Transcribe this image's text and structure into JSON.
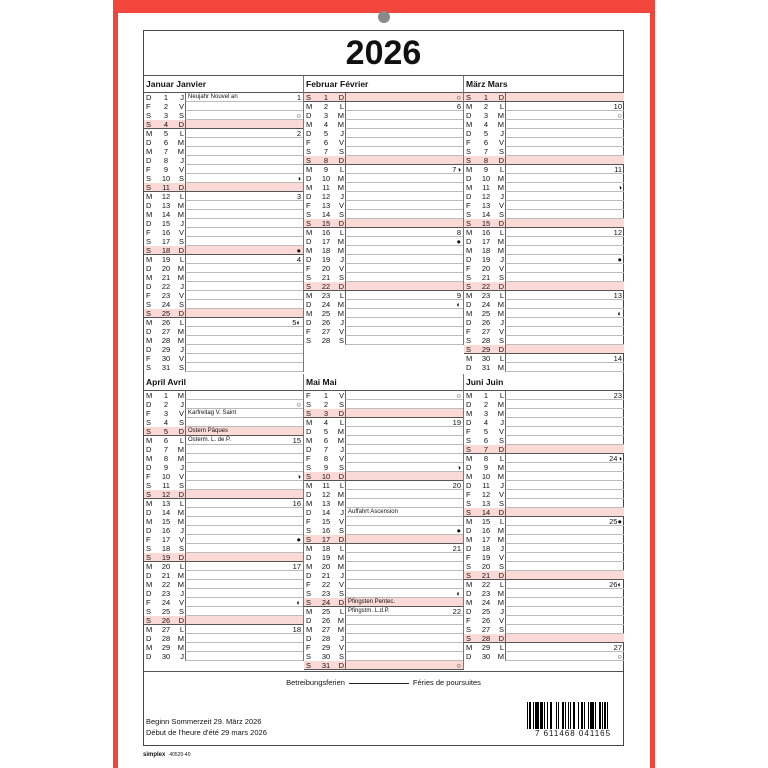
{
  "title": "2026",
  "colors": {
    "frame": "#f2463c",
    "sunday": "#fbd9d7"
  },
  "months": [
    {
      "name": "Januar Janvier",
      "days": [
        "D 1 J",
        "F 2 V",
        "S 3 S",
        "S 4 D",
        "M 5 L",
        "D 6 M",
        "M 7 M",
        "D 8 J",
        "F 9 V",
        "S 10 S",
        "S 11 D",
        "M 12 L",
        "D 13 M",
        "M 14 M",
        "D 15 J",
        "F 16 V",
        "S 17 S",
        "S 18 D",
        "M 19 L",
        "D 20 M",
        "M 21 M",
        "D 22 J",
        "F 23 V",
        "S 24 S",
        "S 25 D",
        "M 26 L",
        "D 27 M",
        "M 28 M",
        "D 29 J",
        "F 30 V",
        "S 31 S"
      ],
      "events": {
        "1": {
          "note": "Neujahr Nouvel an",
          "week": "1"
        },
        "3": {
          "moon": "○"
        },
        "5": {
          "week": "2"
        },
        "10": {
          "moon": "◑"
        },
        "12": {
          "week": "3"
        },
        "18": {
          "moon": "●"
        },
        "19": {
          "week": "4"
        },
        "26": {
          "week": "5",
          "moon": "◐"
        }
      }
    },
    {
      "name": "Februar Février",
      "days": [
        "S 1 D",
        "M 2 L",
        "D 3 M",
        "M 4 M",
        "D 5 J",
        "F 6 V",
        "S 7 S",
        "S 8 D",
        "M 9 L",
        "D 10 M",
        "M 11 M",
        "D 12 J",
        "F 13 V",
        "S 14 S",
        "S 15 D",
        "M 16 L",
        "D 17 M",
        "M 18 M",
        "D 19 J",
        "F 20 V",
        "S 21 S",
        "S 22 D",
        "M 23 L",
        "D 24 M",
        "M 25 M",
        "D 26 J",
        "F 27 V",
        "S 28 S"
      ],
      "events": {
        "1": {
          "moon": "○"
        },
        "2": {
          "week": "6"
        },
        "9": {
          "week": "7",
          "moon": "◑"
        },
        "16": {
          "week": "8"
        },
        "17": {
          "moon": "●"
        },
        "23": {
          "week": "9"
        },
        "24": {
          "moon": "◐"
        }
      }
    },
    {
      "name": "März Mars",
      "days": [
        "S 1 D",
        "M 2 L",
        "D 3 M",
        "M 4 M",
        "D 5 J",
        "F 6 V",
        "S 7 S",
        "S 8 D",
        "M 9 L",
        "D 10 M",
        "M 11 M",
        "D 12 J",
        "F 13 V",
        "S 14 S",
        "S 15 D",
        "M 16 L",
        "D 17 M",
        "M 18 M",
        "D 19 J",
        "F 20 V",
        "S 21 S",
        "S 22 D",
        "M 23 L",
        "D 24 M",
        "M 25 M",
        "D 26 J",
        "F 27 V",
        "S 28 S",
        "S 29 D",
        "M 30 L",
        "D 31 M"
      ],
      "events": {
        "2": {
          "week": "10"
        },
        "3": {
          "moon": "○"
        },
        "9": {
          "week": "11"
        },
        "11": {
          "moon": "◑"
        },
        "16": {
          "week": "12"
        },
        "19": {
          "moon": "●"
        },
        "23": {
          "week": "13"
        },
        "25": {
          "moon": "◐"
        },
        "30": {
          "week": "14"
        }
      }
    },
    {
      "name": "April Avril",
      "days": [
        "M 1 M",
        "D 2 J",
        "F 3 V",
        "S 4 S",
        "S 5 D",
        "M 6 L",
        "D 7 M",
        "M 8 M",
        "D 9 J",
        "F 10 V",
        "S 11 S",
        "S 12 D",
        "M 13 L",
        "D 14 M",
        "M 15 M",
        "D 16 J",
        "F 17 V",
        "S 18 S",
        "S 19 D",
        "M 20 L",
        "D 21 M",
        "M 22 M",
        "D 23 J",
        "F 24 V",
        "S 25 S",
        "S 26 D",
        "M 27 L",
        "D 28 M",
        "M 29 M",
        "D 30 J"
      ],
      "events": {
        "2": {
          "moon": "○"
        },
        "3": {
          "note": "Karfreitag V. Saint"
        },
        "5": {
          "note": "Ostern  Pâques"
        },
        "6": {
          "note": "Osterm.  L. de P.",
          "week": "15"
        },
        "10": {
          "moon": "◑"
        },
        "13": {
          "week": "16"
        },
        "17": {
          "moon": "●"
        },
        "20": {
          "week": "17"
        },
        "24": {
          "moon": "◐"
        },
        "27": {
          "week": "18"
        }
      }
    },
    {
      "name": "Mai Mai",
      "days": [
        "F 1 V",
        "S 2 S",
        "S 3 D",
        "M 4 L",
        "D 5 M",
        "M 6 M",
        "D 7 J",
        "F 8 V",
        "S 9 S",
        "S 10 D",
        "M 11 L",
        "D 12 M",
        "M 13 M",
        "D 14 J",
        "F 15 V",
        "S 16 S",
        "S 17 D",
        "M 18 L",
        "D 19 M",
        "M 20 M",
        "D 21 J",
        "F 22 V",
        "S 23 S",
        "S 24 D",
        "M 25 L",
        "D 26 M",
        "M 27 M",
        "D 28 J",
        "F 29 V",
        "S 30 S",
        "S 31 D"
      ],
      "events": {
        "1": {
          "moon": "○"
        },
        "4": {
          "week": "19"
        },
        "9": {
          "moon": "◑"
        },
        "11": {
          "week": "20"
        },
        "14": {
          "note": "Auffahrt  Ascension"
        },
        "16": {
          "moon": "●"
        },
        "18": {
          "week": "21"
        },
        "23": {
          "moon": "◐"
        },
        "24": {
          "note": "Pfingsten  Pentec."
        },
        "25": {
          "note": "Pfingstm.  L.d.P.",
          "week": "22"
        },
        "31": {
          "moon": "○"
        }
      }
    },
    {
      "name": "Juni Juin",
      "days": [
        "M 1 L",
        "D 2 M",
        "M 3 M",
        "D 4 J",
        "F 5 V",
        "S 6 S",
        "S 7 D",
        "M 8 L",
        "D 9 M",
        "M 10 M",
        "D 11 J",
        "F 12 V",
        "S 13 S",
        "S 14 D",
        "M 15 L",
        "D 16 M",
        "M 17 M",
        "D 18 J",
        "F 19 V",
        "S 20 S",
        "S 21 D",
        "M 22 L",
        "D 23 M",
        "M 24 M",
        "D 25 J",
        "F 26 V",
        "S 27 S",
        "S 28 D",
        "M 29 L",
        "D 30 M"
      ],
      "events": {
        "1": {
          "week": "23"
        },
        "8": {
          "week": "24",
          "moon": "◑"
        },
        "15": {
          "week": "25",
          "moon": "●"
        },
        "22": {
          "week": "26",
          "moon": "◐"
        },
        "29": {
          "week": "27"
        },
        "30": {
          "moon": "○"
        }
      }
    }
  ],
  "footer": {
    "holidays_de": "Betreibungsferien",
    "holidays_fr": "Féries de poursuites",
    "dst_de": "Beginn Sommerzeit 29. März 2026",
    "dst_fr": "Début de l'heure d'été 29 mars 2026",
    "barcode": "7 611468 041165"
  },
  "brand": {
    "name": "simplex",
    "code": "40520-40"
  }
}
